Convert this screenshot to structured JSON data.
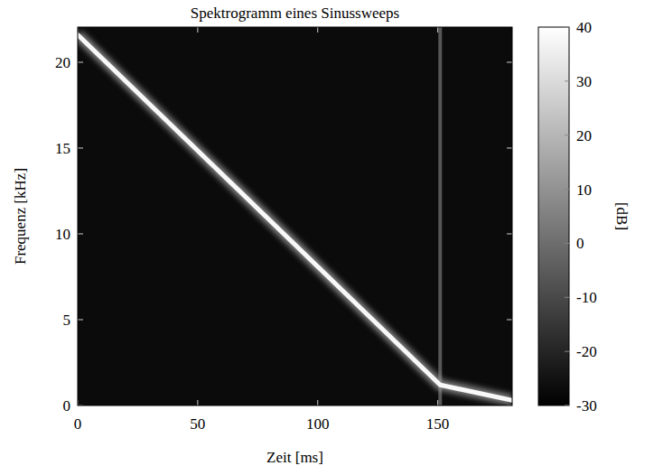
{
  "chart_data": {
    "type": "spectrogram",
    "title": "Spektrogramm eines Sinussweeps",
    "x_label": "Zeit [ms]",
    "y_label": "Frequenz [kHz]",
    "xlim": [
      0,
      181
    ],
    "xticks": [
      0,
      50,
      100,
      150
    ],
    "ylim": [
      0,
      22.05
    ],
    "yticks": [
      0,
      5,
      10,
      15,
      20
    ],
    "background": -27,
    "sweep": {
      "x": [
        0,
        151,
        181
      ],
      "y": [
        21.6,
        1.2,
        0.3
      ],
      "level": 38
    },
    "impulse": {
      "x": 151,
      "level": -6
    },
    "colorbar": {
      "label": "[dB]",
      "range": [
        -30,
        40
      ],
      "ticks": [
        -30,
        -20,
        -10,
        0,
        10,
        20,
        30,
        40
      ]
    }
  }
}
